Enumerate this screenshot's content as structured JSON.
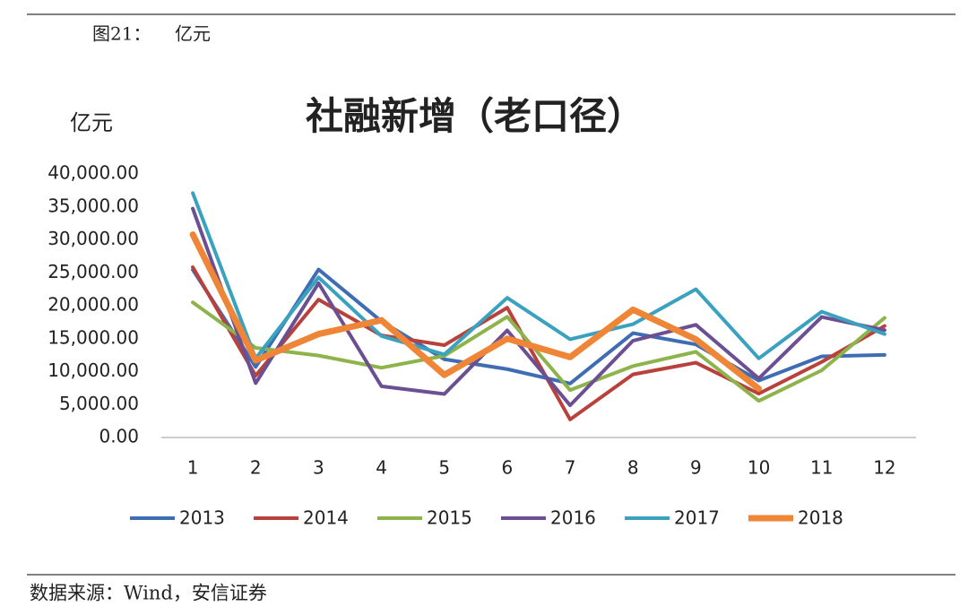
{
  "header": {
    "figure": "图21：",
    "unit": "亿元"
  },
  "chart_data": {
    "type": "line",
    "title": "社融新增（老口径）",
    "y_unit": "亿元",
    "categories": [
      "1",
      "2",
      "3",
      "4",
      "5",
      "6",
      "7",
      "8",
      "9",
      "10",
      "11",
      "12"
    ],
    "series": [
      {
        "name": "2013",
        "color": "#3f6db3",
        "width": 4,
        "values": [
          25446,
          10705,
          25503,
          17629,
          11871,
          10375,
          8191,
          15841,
          14120,
          8645,
          12310,
          12532
        ]
      },
      {
        "name": "2014",
        "color": "#b8413c",
        "width": 4,
        "values": [
          25845,
          9387,
          20934,
          15500,
          14013,
          19690,
          2733,
          9574,
          11355,
          6649,
          11459,
          16929
        ]
      },
      {
        "name": "2015",
        "color": "#8db34b",
        "width": 4,
        "values": [
          20516,
          13609,
          12433,
          10582,
          12397,
          18324,
          7188,
          10838,
          13002,
          5557,
          10187,
          18151
        ]
      },
      {
        "name": "2016",
        "color": "#6c4f93",
        "width": 4,
        "values": [
          34742,
          8247,
          23417,
          7778,
          6599,
          16260,
          4879,
          14692,
          17100,
          8963,
          18295,
          16292
        ]
      },
      {
        "name": "2017",
        "color": "#3aa2bf",
        "width": 4,
        "values": [
          37100,
          12000,
          24300,
          15400,
          12600,
          21200,
          14900,
          17200,
          22500,
          12000,
          19100,
          15700
        ]
      },
      {
        "name": "2018",
        "color": "#ef8637",
        "width": 7,
        "values": [
          30800,
          11700,
          15700,
          17800,
          9500,
          15000,
          12200,
          19400,
          14900,
          7400,
          null,
          null
        ]
      }
    ],
    "ylim": [
      0,
      40000
    ],
    "yticks": [
      {
        "value": 0,
        "label": "0.00"
      },
      {
        "value": 5000,
        "label": "5,000.00"
      },
      {
        "value": 10000,
        "label": "10,000.00"
      },
      {
        "value": 15000,
        "label": "15,000.00"
      },
      {
        "value": 20000,
        "label": "20,000.00"
      },
      {
        "value": 25000,
        "label": "25,000.00"
      },
      {
        "value": 30000,
        "label": "30,000.00"
      },
      {
        "value": 35000,
        "label": "35,000.00"
      },
      {
        "value": 40000,
        "label": "40,000.00"
      }
    ],
    "legend": "bottom"
  },
  "footer": {
    "source": "数据来源：Wind，安信证券"
  }
}
